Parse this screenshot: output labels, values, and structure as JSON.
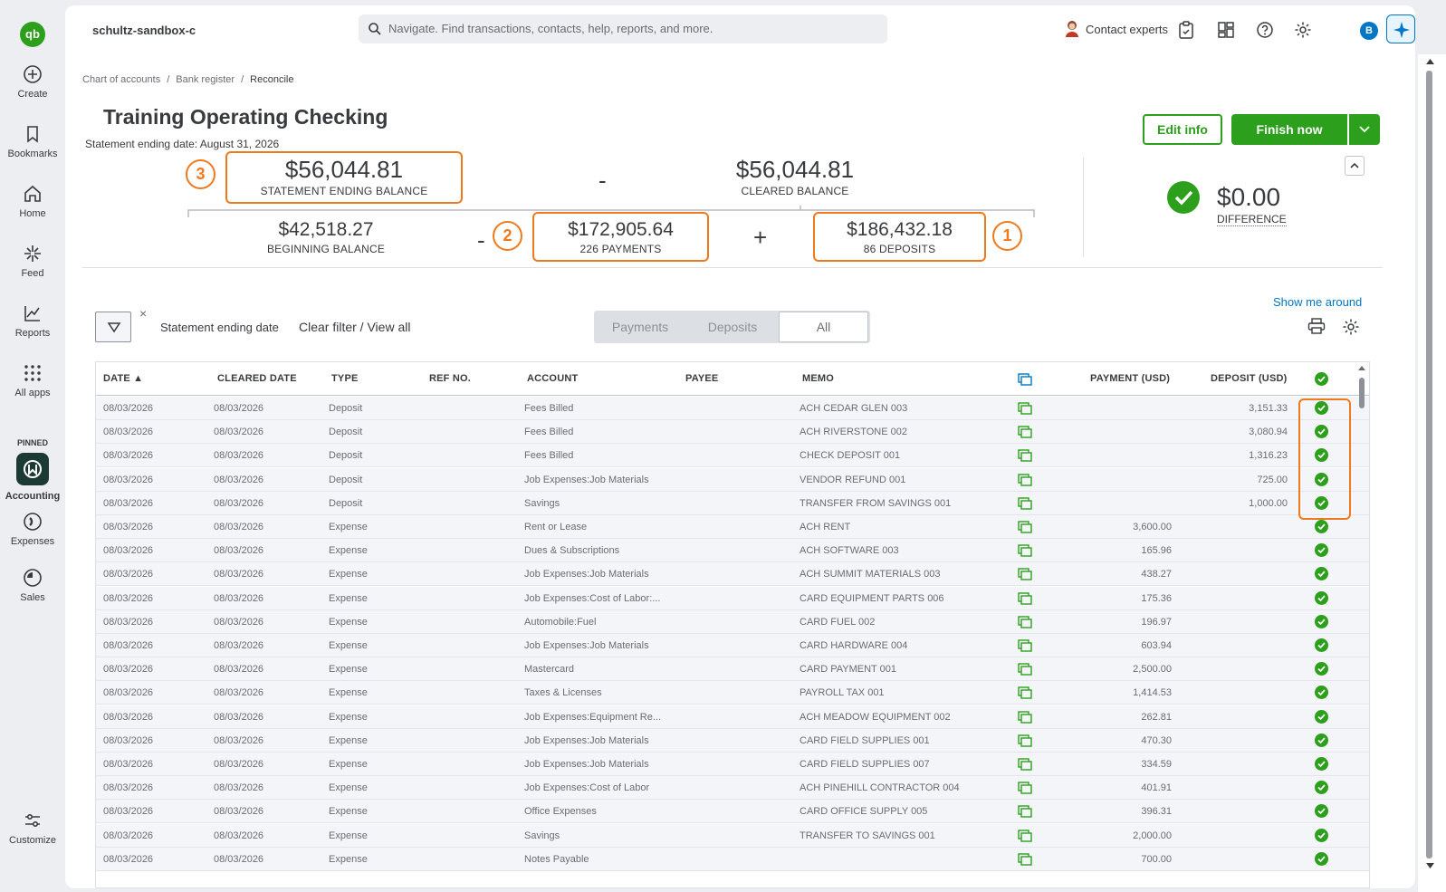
{
  "rail": {
    "logo": "qb",
    "items": [
      {
        "label": "Create"
      },
      {
        "label": "Bookmarks"
      },
      {
        "label": "Home"
      },
      {
        "label": "Feed"
      },
      {
        "label": "Reports"
      },
      {
        "label": "All apps"
      }
    ],
    "pinned_label": "PINNED",
    "pinned": [
      {
        "label": "Accounting"
      },
      {
        "label": "Expenses"
      },
      {
        "label": "Sales"
      }
    ],
    "customize": "Customize"
  },
  "header": {
    "company": "schultz-sandbox-c",
    "search_placeholder": "Navigate. Find transactions, contacts, help, reports, and more.",
    "contact": "Contact experts",
    "user_initial": "B"
  },
  "breadcrumb": [
    "Chart of accounts",
    "Bank register",
    "Reconcile"
  ],
  "page": {
    "title": "Training Operating Checking",
    "statement_date": "Statement ending date: August 31, 2026",
    "edit_info": "Edit info",
    "finish_now": "Finish now"
  },
  "summary": {
    "statement_ending_balance": "$56,044.81",
    "statement_ending_label": "STATEMENT ENDING BALANCE",
    "cleared_balance": "$56,044.81",
    "cleared_label": "CLEARED BALANCE",
    "beginning_balance": "$42,518.27",
    "beginning_label": "BEGINNING BALANCE",
    "payments": "$172,905.64",
    "payments_label": "226 PAYMENTS",
    "deposits": "$186,432.18",
    "deposits_label": "86 DEPOSITS",
    "difference": "$0.00",
    "difference_label": "DIFFERENCE",
    "op_minus": "-",
    "op_plus": "+",
    "steps": [
      "3",
      "2",
      "1"
    ]
  },
  "toolbar": {
    "show_me": "Show me around",
    "filter_label": "Statement ending date",
    "clear_filter": "Clear filter / View all",
    "filter_x": "×",
    "tabs": [
      "Payments",
      "Deposits",
      "All"
    ],
    "active_tab": "All"
  },
  "table": {
    "columns": [
      "DATE ▲",
      "CLEARED DATE",
      "TYPE",
      "REF NO.",
      "ACCOUNT",
      "PAYEE",
      "MEMO",
      "PAYMENT (USD)",
      "DEPOSIT (USD)"
    ],
    "rows": [
      {
        "date": "08/03/2026",
        "cleared": "08/03/2026",
        "type": "Deposit",
        "account": "Fees Billed",
        "memo": "ACH CEDAR GLEN 003",
        "payment": "",
        "deposit": "3,151.33"
      },
      {
        "date": "08/03/2026",
        "cleared": "08/03/2026",
        "type": "Deposit",
        "account": "Fees Billed",
        "memo": "ACH RIVERSTONE 002",
        "payment": "",
        "deposit": "3,080.94"
      },
      {
        "date": "08/03/2026",
        "cleared": "08/03/2026",
        "type": "Deposit",
        "account": "Fees Billed",
        "memo": "CHECK DEPOSIT 001",
        "payment": "",
        "deposit": "1,316.23"
      },
      {
        "date": "08/03/2026",
        "cleared": "08/03/2026",
        "type": "Deposit",
        "account": "Job Expenses:Job Materials",
        "memo": "VENDOR REFUND 001",
        "payment": "",
        "deposit": "725.00"
      },
      {
        "date": "08/03/2026",
        "cleared": "08/03/2026",
        "type": "Deposit",
        "account": "Savings",
        "memo": "TRANSFER FROM SAVINGS 001",
        "payment": "",
        "deposit": "1,000.00"
      },
      {
        "date": "08/03/2026",
        "cleared": "08/03/2026",
        "type": "Expense",
        "account": "Rent or Lease",
        "memo": "ACH RENT",
        "payment": "3,600.00",
        "deposit": ""
      },
      {
        "date": "08/03/2026",
        "cleared": "08/03/2026",
        "type": "Expense",
        "account": "Dues & Subscriptions",
        "memo": "ACH SOFTWARE 003",
        "payment": "165.96",
        "deposit": ""
      },
      {
        "date": "08/03/2026",
        "cleared": "08/03/2026",
        "type": "Expense",
        "account": "Job Expenses:Job Materials",
        "memo": "ACH SUMMIT MATERIALS 003",
        "payment": "438.27",
        "deposit": ""
      },
      {
        "date": "08/03/2026",
        "cleared": "08/03/2026",
        "type": "Expense",
        "account": "Job Expenses:Cost of Labor:...",
        "memo": "CARD EQUIPMENT PARTS 006",
        "payment": "175.36",
        "deposit": ""
      },
      {
        "date": "08/03/2026",
        "cleared": "08/03/2026",
        "type": "Expense",
        "account": "Automobile:Fuel",
        "memo": "CARD FUEL 002",
        "payment": "196.97",
        "deposit": ""
      },
      {
        "date": "08/03/2026",
        "cleared": "08/03/2026",
        "type": "Expense",
        "account": "Job Expenses:Job Materials",
        "memo": "CARD HARDWARE 004",
        "payment": "603.94",
        "deposit": ""
      },
      {
        "date": "08/03/2026",
        "cleared": "08/03/2026",
        "type": "Expense",
        "account": "Mastercard",
        "memo": "CARD PAYMENT 001",
        "payment": "2,500.00",
        "deposit": ""
      },
      {
        "date": "08/03/2026",
        "cleared": "08/03/2026",
        "type": "Expense",
        "account": "Taxes & Licenses",
        "memo": "PAYROLL TAX 001",
        "payment": "1,414.53",
        "deposit": ""
      },
      {
        "date": "08/03/2026",
        "cleared": "08/03/2026",
        "type": "Expense",
        "account": "Job Expenses:Equipment Re...",
        "memo": "ACH MEADOW EQUIPMENT 002",
        "payment": "262.81",
        "deposit": ""
      },
      {
        "date": "08/03/2026",
        "cleared": "08/03/2026",
        "type": "Expense",
        "account": "Job Expenses:Job Materials",
        "memo": "CARD FIELD SUPPLIES 001",
        "payment": "470.30",
        "deposit": ""
      },
      {
        "date": "08/03/2026",
        "cleared": "08/03/2026",
        "type": "Expense",
        "account": "Job Expenses:Job Materials",
        "memo": "CARD FIELD SUPPLIES 007",
        "payment": "334.59",
        "deposit": ""
      },
      {
        "date": "08/03/2026",
        "cleared": "08/03/2026",
        "type": "Expense",
        "account": "Job Expenses:Cost of Labor",
        "memo": "ACH PINEHILL CONTRACTOR 004",
        "payment": "401.91",
        "deposit": ""
      },
      {
        "date": "08/03/2026",
        "cleared": "08/03/2026",
        "type": "Expense",
        "account": "Office Expenses",
        "memo": "CARD OFFICE SUPPLY 005",
        "payment": "396.31",
        "deposit": ""
      },
      {
        "date": "08/03/2026",
        "cleared": "08/03/2026",
        "type": "Expense",
        "account": "Savings",
        "memo": "TRANSFER TO SAVINGS 001",
        "payment": "2,000.00",
        "deposit": ""
      },
      {
        "date": "08/03/2026",
        "cleared": "08/03/2026",
        "type": "Expense",
        "account": "Notes Payable",
        "memo": "",
        "payment": "700.00",
        "deposit": ""
      }
    ]
  },
  "colors": {
    "brand_green": "#2ca01c",
    "highlight_orange": "#ef7a1d",
    "link_blue": "#0077c5"
  }
}
